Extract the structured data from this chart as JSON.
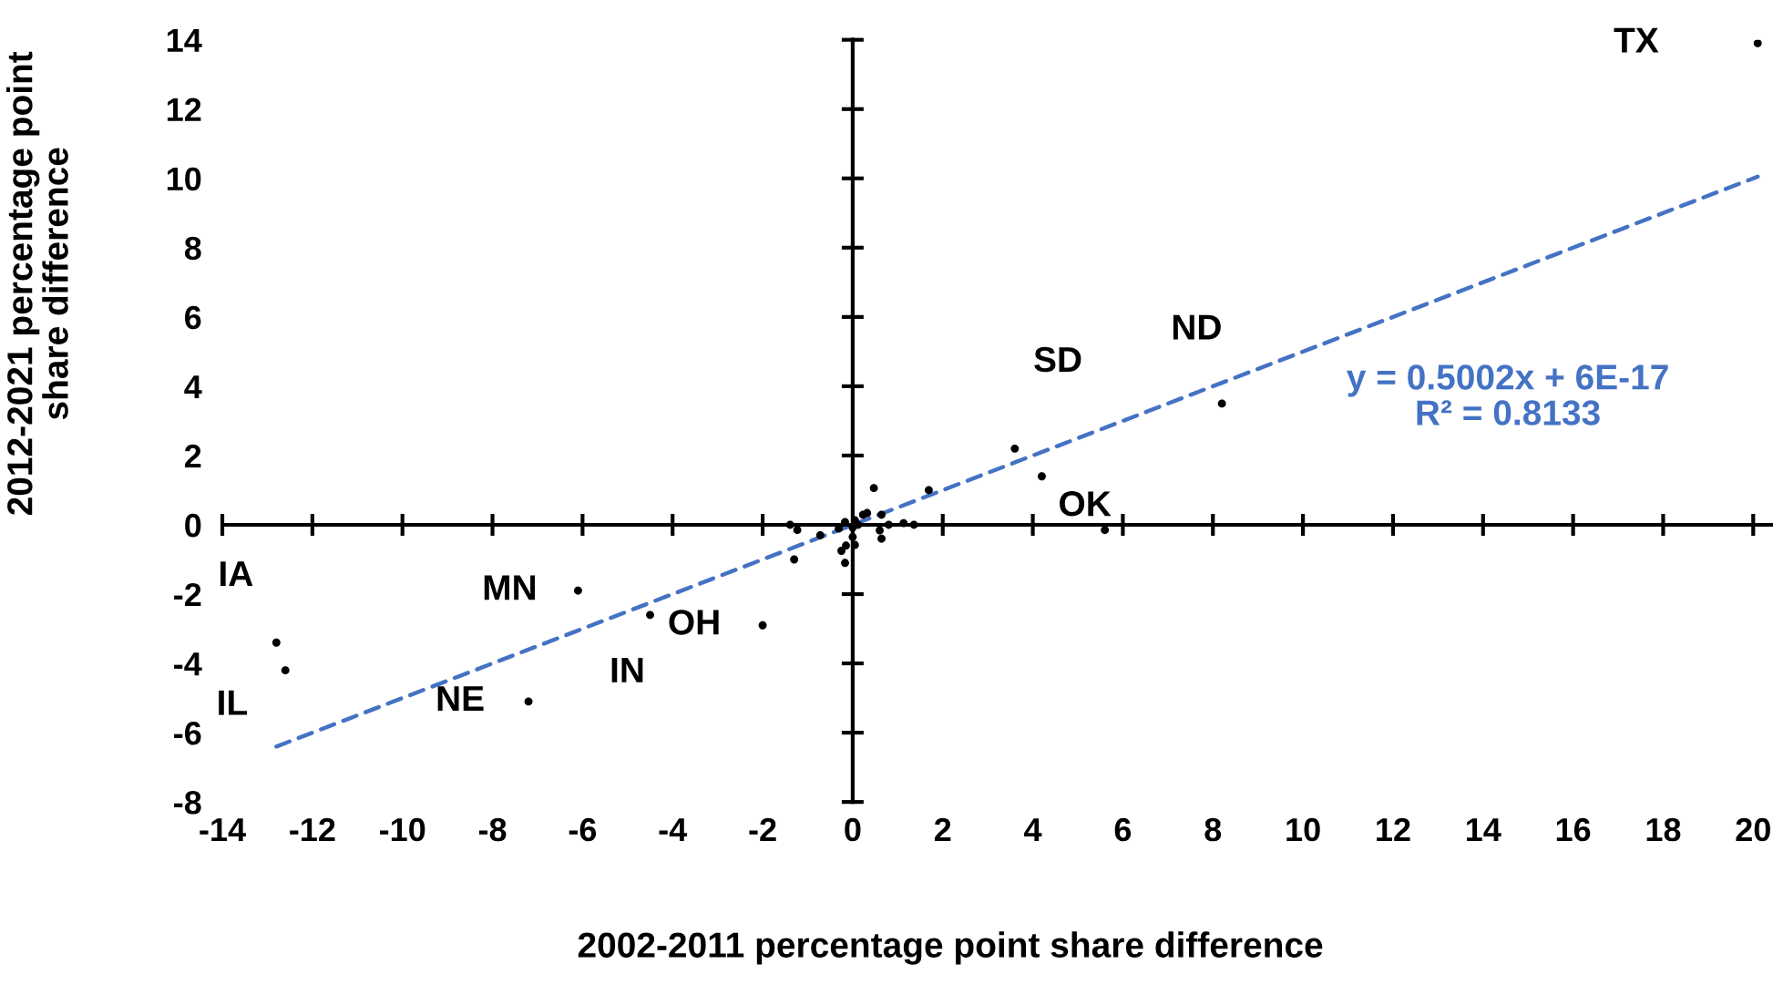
{
  "chart_data": {
    "type": "scatter",
    "xlabel": "2002-2011 percentage point share difference",
    "ylabel": "2012-2021 percentage point\nshare difference",
    "xlim": [
      -14,
      20.4
    ],
    "ylim": [
      -8,
      14
    ],
    "xticks": [
      -14,
      -12,
      -10,
      -8,
      -6,
      -4,
      -2,
      0,
      2,
      4,
      6,
      8,
      10,
      12,
      14,
      16,
      18,
      20
    ],
    "yticks": [
      -8,
      -6,
      -4,
      -2,
      0,
      2,
      4,
      6,
      8,
      10,
      12,
      14
    ],
    "marker": "circle",
    "series": [
      {
        "color": "#000000",
        "x": [
          20.1,
          8.2,
          3.6,
          4.2,
          5.6,
          -6.1,
          -4.5,
          -2.0,
          -7.2,
          -12.8,
          -12.6,
          -1.3,
          0.47,
          1.69,
          -1.39,
          -1.23,
          -0.72,
          -0.17,
          0.05,
          0.23,
          0.32,
          0.12,
          0.0,
          -0.31,
          0.64,
          0.6,
          0.64,
          0.8,
          1.13,
          1.36,
          0.0,
          -0.15,
          -0.25,
          0.05,
          -0.17
        ],
        "values": [
          13.9,
          3.5,
          2.2,
          1.4,
          -0.15,
          -1.9,
          -2.6,
          -2.9,
          -5.1,
          -3.4,
          -4.2,
          -1.0,
          1.06,
          1.0,
          0.0,
          -0.15,
          -0.3,
          0.08,
          0.13,
          0.29,
          0.34,
          0.0,
          -0.08,
          -0.11,
          0.29,
          -0.16,
          -0.4,
          0.0,
          0.05,
          0.0,
          -0.35,
          -0.6,
          -0.75,
          -0.58,
          -1.1
        ]
      },
      {
        "type": "line",
        "color": "#4472c4",
        "line_style": "dashed",
        "marker": "none",
        "x": [
          -12.8,
          20.1
        ],
        "values": [
          -6.4,
          10.05
        ]
      }
    ],
    "annotations": [
      {
        "text": "TX",
        "x": 20.1,
        "y": 13.9
      },
      {
        "text": "ND",
        "x": 8.2,
        "y": 3.5
      },
      {
        "text": "SD",
        "x": 3.6,
        "y": 2.2
      },
      {
        "text": "OK",
        "x": 4.2,
        "y": 1.4
      },
      {
        "text": "MN",
        "x": -6.1,
        "y": -1.9
      },
      {
        "text": "IN",
        "x": -4.5,
        "y": -2.6
      },
      {
        "text": "OH",
        "x": -2.0,
        "y": -2.9
      },
      {
        "text": "NE",
        "x": -7.2,
        "y": -5.1
      },
      {
        "text": "IA",
        "x": -12.8,
        "y": -3.4
      },
      {
        "text": "IL",
        "x": -12.6,
        "y": -4.2
      },
      "y = 0.5002x + 6E-17\nR² = 0.8133"
    ]
  }
}
